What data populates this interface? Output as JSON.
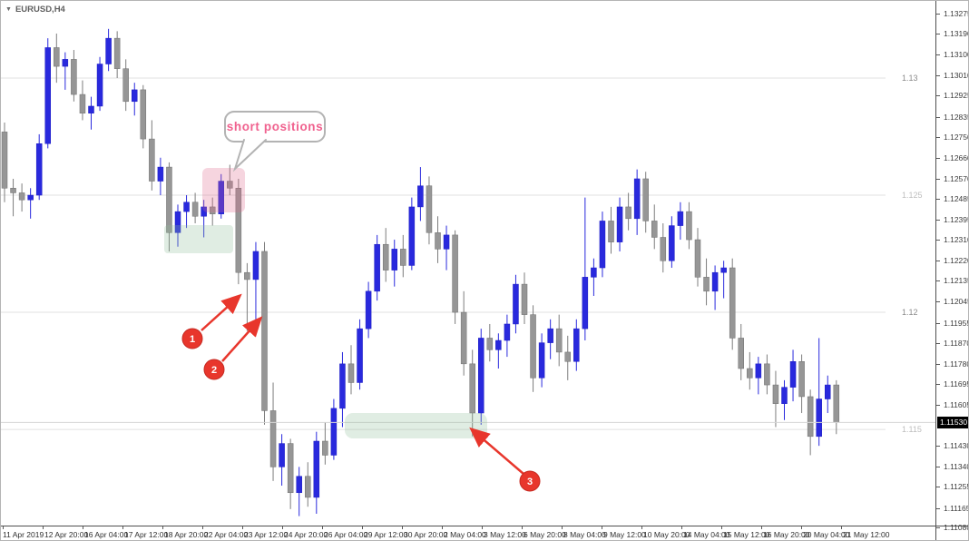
{
  "window": {
    "symbol_label": "EURUSD,H4",
    "dropdown_icon": "dropdown-triangle-icon"
  },
  "colors": {
    "bull": "#2929dd",
    "bull_border": "#1c1cc2",
    "bear": "#969696",
    "bear_border": "#6f6f6f",
    "grid": "#e0e0e0",
    "grid_label_dark": "#8a8a8a",
    "grid_label_light": "#bdbdbd",
    "accent_red": "#e8362c",
    "zone_pink": "rgba(224,105,140,0.28)",
    "zone_green": "rgba(142,190,156,0.28)",
    "bubble_text": "#f0618e",
    "price_box_bg": "#000000",
    "price_box_text": "#ffffff",
    "current_price_line": "#d6d6d6"
  },
  "annotations": {
    "bubble": {
      "text": "short positions"
    },
    "markers": [
      {
        "label": "1"
      },
      {
        "label": "2"
      },
      {
        "label": "3"
      }
    ],
    "zones": [
      {
        "name": "short-positions-entry-zone",
        "color": "pink"
      },
      {
        "name": "consolidation-zone",
        "color": "green"
      },
      {
        "name": "support-zone",
        "color": "green"
      }
    ]
  },
  "chart_data": {
    "type": "candlestick",
    "title": "EURUSD,H4",
    "ylim": [
      1.1108,
      1.1328
    ],
    "last_price": 1.1153,
    "last_price_label": "1.11530",
    "grid_price_labels": [
      "1.13",
      "1.125",
      "1.12",
      "1.115"
    ],
    "y_tick_labels": [
      "1.13275",
      "1.13190",
      "1.13100",
      "1.13010",
      "1.12925",
      "1.12835",
      "1.12750",
      "1.12660",
      "1.12570",
      "1.12485",
      "1.12395",
      "1.12310",
      "1.12220",
      "1.12135",
      "1.12045",
      "1.11955",
      "1.11870",
      "1.11780",
      "1.11695",
      "1.11605",
      "1.11430",
      "1.11340",
      "1.11255",
      "1.11165",
      "1.11080"
    ],
    "x_tick_labels": [
      "11 Apr 2019",
      "12 Apr 20:00",
      "16 Apr 04:00",
      "17 Apr 12:00",
      "18 Apr 20:00",
      "22 Apr 04:00",
      "23 Apr 12:00",
      "24 Apr 20:00",
      "26 Apr 04:00",
      "29 Apr 12:00",
      "30 Apr 20:00",
      "2 May 04:00",
      "3 May 12:00",
      "6 May 20:00",
      "8 May 04:00",
      "9 May 12:00",
      "10 May 20:00",
      "14 May 04:00",
      "15 May 12:00",
      "16 May 20:00",
      "20 May 04:00",
      "21 May 12:00"
    ],
    "candles": [
      [
        1.1277,
        1.1281,
        1.1247,
        1.1253
      ],
      [
        1.1253,
        1.1257,
        1.1241,
        1.1251
      ],
      [
        1.1251,
        1.1255,
        1.1243,
        1.1248
      ],
      [
        1.1248,
        1.1253,
        1.124,
        1.125
      ],
      [
        1.125,
        1.1276,
        1.1248,
        1.1272
      ],
      [
        1.1272,
        1.1317,
        1.127,
        1.1313
      ],
      [
        1.1313,
        1.1319,
        1.1298,
        1.1305
      ],
      [
        1.1305,
        1.1311,
        1.1295,
        1.1308
      ],
      [
        1.1308,
        1.1312,
        1.129,
        1.1293
      ],
      [
        1.1293,
        1.1299,
        1.1282,
        1.1285
      ],
      [
        1.1285,
        1.1292,
        1.1278,
        1.1288
      ],
      [
        1.1288,
        1.1309,
        1.1286,
        1.1306
      ],
      [
        1.1306,
        1.1321,
        1.1303,
        1.1317
      ],
      [
        1.1317,
        1.132,
        1.13,
        1.1304
      ],
      [
        1.1304,
        1.1308,
        1.1286,
        1.129
      ],
      [
        1.129,
        1.1298,
        1.1284,
        1.1295
      ],
      [
        1.1295,
        1.1297,
        1.127,
        1.1274
      ],
      [
        1.1274,
        1.1282,
        1.1252,
        1.1256
      ],
      [
        1.1256,
        1.1266,
        1.125,
        1.1262
      ],
      [
        1.1262,
        1.1264,
        1.1226,
        1.1234
      ],
      [
        1.1234,
        1.1246,
        1.1228,
        1.1243
      ],
      [
        1.1243,
        1.125,
        1.1236,
        1.1247
      ],
      [
        1.1247,
        1.1251,
        1.1238,
        1.1241
      ],
      [
        1.1241,
        1.1248,
        1.1232,
        1.1245
      ],
      [
        1.1245,
        1.1249,
        1.1237,
        1.1242
      ],
      [
        1.1242,
        1.1259,
        1.124,
        1.1256
      ],
      [
        1.1256,
        1.1263,
        1.125,
        1.1253
      ],
      [
        1.1253,
        1.1257,
        1.1212,
        1.1217
      ],
      [
        1.1217,
        1.1221,
        1.1192,
        1.1214
      ],
      [
        1.1214,
        1.123,
        1.1196,
        1.1226
      ],
      [
        1.1226,
        1.123,
        1.1152,
        1.1158
      ],
      [
        1.1158,
        1.117,
        1.1128,
        1.1134
      ],
      [
        1.1134,
        1.1148,
        1.1126,
        1.1144
      ],
      [
        1.1144,
        1.1146,
        1.1116,
        1.1123
      ],
      [
        1.1123,
        1.1134,
        1.1113,
        1.113
      ],
      [
        1.113,
        1.1136,
        1.1117,
        1.1121
      ],
      [
        1.1121,
        1.1149,
        1.1114,
        1.1145
      ],
      [
        1.1145,
        1.1153,
        1.1135,
        1.1139
      ],
      [
        1.1139,
        1.1163,
        1.1137,
        1.1159
      ],
      [
        1.1159,
        1.1183,
        1.1151,
        1.1178
      ],
      [
        1.1178,
        1.1186,
        1.1165,
        1.117
      ],
      [
        1.117,
        1.1197,
        1.1167,
        1.1193
      ],
      [
        1.1193,
        1.1213,
        1.1189,
        1.1209
      ],
      [
        1.1209,
        1.1233,
        1.1205,
        1.1229
      ],
      [
        1.1229,
        1.1236,
        1.1213,
        1.1218
      ],
      [
        1.1218,
        1.1231,
        1.1211,
        1.1227
      ],
      [
        1.1227,
        1.1233,
        1.1215,
        1.122
      ],
      [
        1.122,
        1.1249,
        1.1218,
        1.1245
      ],
      [
        1.1245,
        1.1262,
        1.1239,
        1.1254
      ],
      [
        1.1254,
        1.1258,
        1.1229,
        1.1234
      ],
      [
        1.1234,
        1.1241,
        1.1221,
        1.1227
      ],
      [
        1.1227,
        1.1237,
        1.1218,
        1.1233
      ],
      [
        1.1233,
        1.1235,
        1.1195,
        1.12
      ],
      [
        1.12,
        1.1209,
        1.1173,
        1.1178
      ],
      [
        1.1178,
        1.1184,
        1.1147,
        1.1157
      ],
      [
        1.1157,
        1.1193,
        1.1152,
        1.1189
      ],
      [
        1.1189,
        1.1195,
        1.1179,
        1.1184
      ],
      [
        1.1184,
        1.1191,
        1.1176,
        1.1188
      ],
      [
        1.1188,
        1.1199,
        1.1181,
        1.1195
      ],
      [
        1.1195,
        1.1216,
        1.1191,
        1.1212
      ],
      [
        1.1212,
        1.1217,
        1.1195,
        1.1199
      ],
      [
        1.1199,
        1.1203,
        1.1166,
        1.1172
      ],
      [
        1.1172,
        1.1191,
        1.1168,
        1.1187
      ],
      [
        1.1187,
        1.1197,
        1.118,
        1.1193
      ],
      [
        1.1193,
        1.1199,
        1.1177,
        1.1183
      ],
      [
        1.1183,
        1.119,
        1.1171,
        1.1179
      ],
      [
        1.1179,
        1.1197,
        1.1175,
        1.1193
      ],
      [
        1.1193,
        1.1249,
        1.1188,
        1.1215
      ],
      [
        1.1215,
        1.1223,
        1.1207,
        1.1219
      ],
      [
        1.1219,
        1.1243,
        1.1215,
        1.1239
      ],
      [
        1.1239,
        1.1245,
        1.1225,
        1.123
      ],
      [
        1.123,
        1.1249,
        1.1226,
        1.1245
      ],
      [
        1.1245,
        1.1251,
        1.1235,
        1.124
      ],
      [
        1.124,
        1.1261,
        1.1233,
        1.1257
      ],
      [
        1.1257,
        1.126,
        1.1234,
        1.1239
      ],
      [
        1.1239,
        1.1246,
        1.1227,
        1.1232
      ],
      [
        1.1232,
        1.1238,
        1.1217,
        1.1222
      ],
      [
        1.1222,
        1.1241,
        1.1219,
        1.1237
      ],
      [
        1.1237,
        1.1247,
        1.1231,
        1.1243
      ],
      [
        1.1243,
        1.1247,
        1.1227,
        1.1231
      ],
      [
        1.1231,
        1.1236,
        1.1211,
        1.1215
      ],
      [
        1.1215,
        1.1223,
        1.1203,
        1.1209
      ],
      [
        1.1209,
        1.122,
        1.1201,
        1.1217
      ],
      [
        1.1217,
        1.1222,
        1.1206,
        1.1219
      ],
      [
        1.1219,
        1.1223,
        1.1184,
        1.1189
      ],
      [
        1.1189,
        1.1195,
        1.1171,
        1.1176
      ],
      [
        1.1176,
        1.1183,
        1.1167,
        1.1172
      ],
      [
        1.1172,
        1.1181,
        1.1165,
        1.1178
      ],
      [
        1.1178,
        1.1182,
        1.1165,
        1.1169
      ],
      [
        1.1169,
        1.1175,
        1.1151,
        1.1161
      ],
      [
        1.1161,
        1.1171,
        1.1154,
        1.1168
      ],
      [
        1.1168,
        1.1184,
        1.1162,
        1.1179
      ],
      [
        1.1179,
        1.1182,
        1.1157,
        1.1164
      ],
      [
        1.1164,
        1.1167,
        1.1139,
        1.1147
      ],
      [
        1.1147,
        1.1189,
        1.1143,
        1.1163
      ],
      [
        1.1163,
        1.1173,
        1.1157,
        1.1169
      ],
      [
        1.1169,
        1.1171,
        1.1148,
        1.1153
      ]
    ]
  }
}
